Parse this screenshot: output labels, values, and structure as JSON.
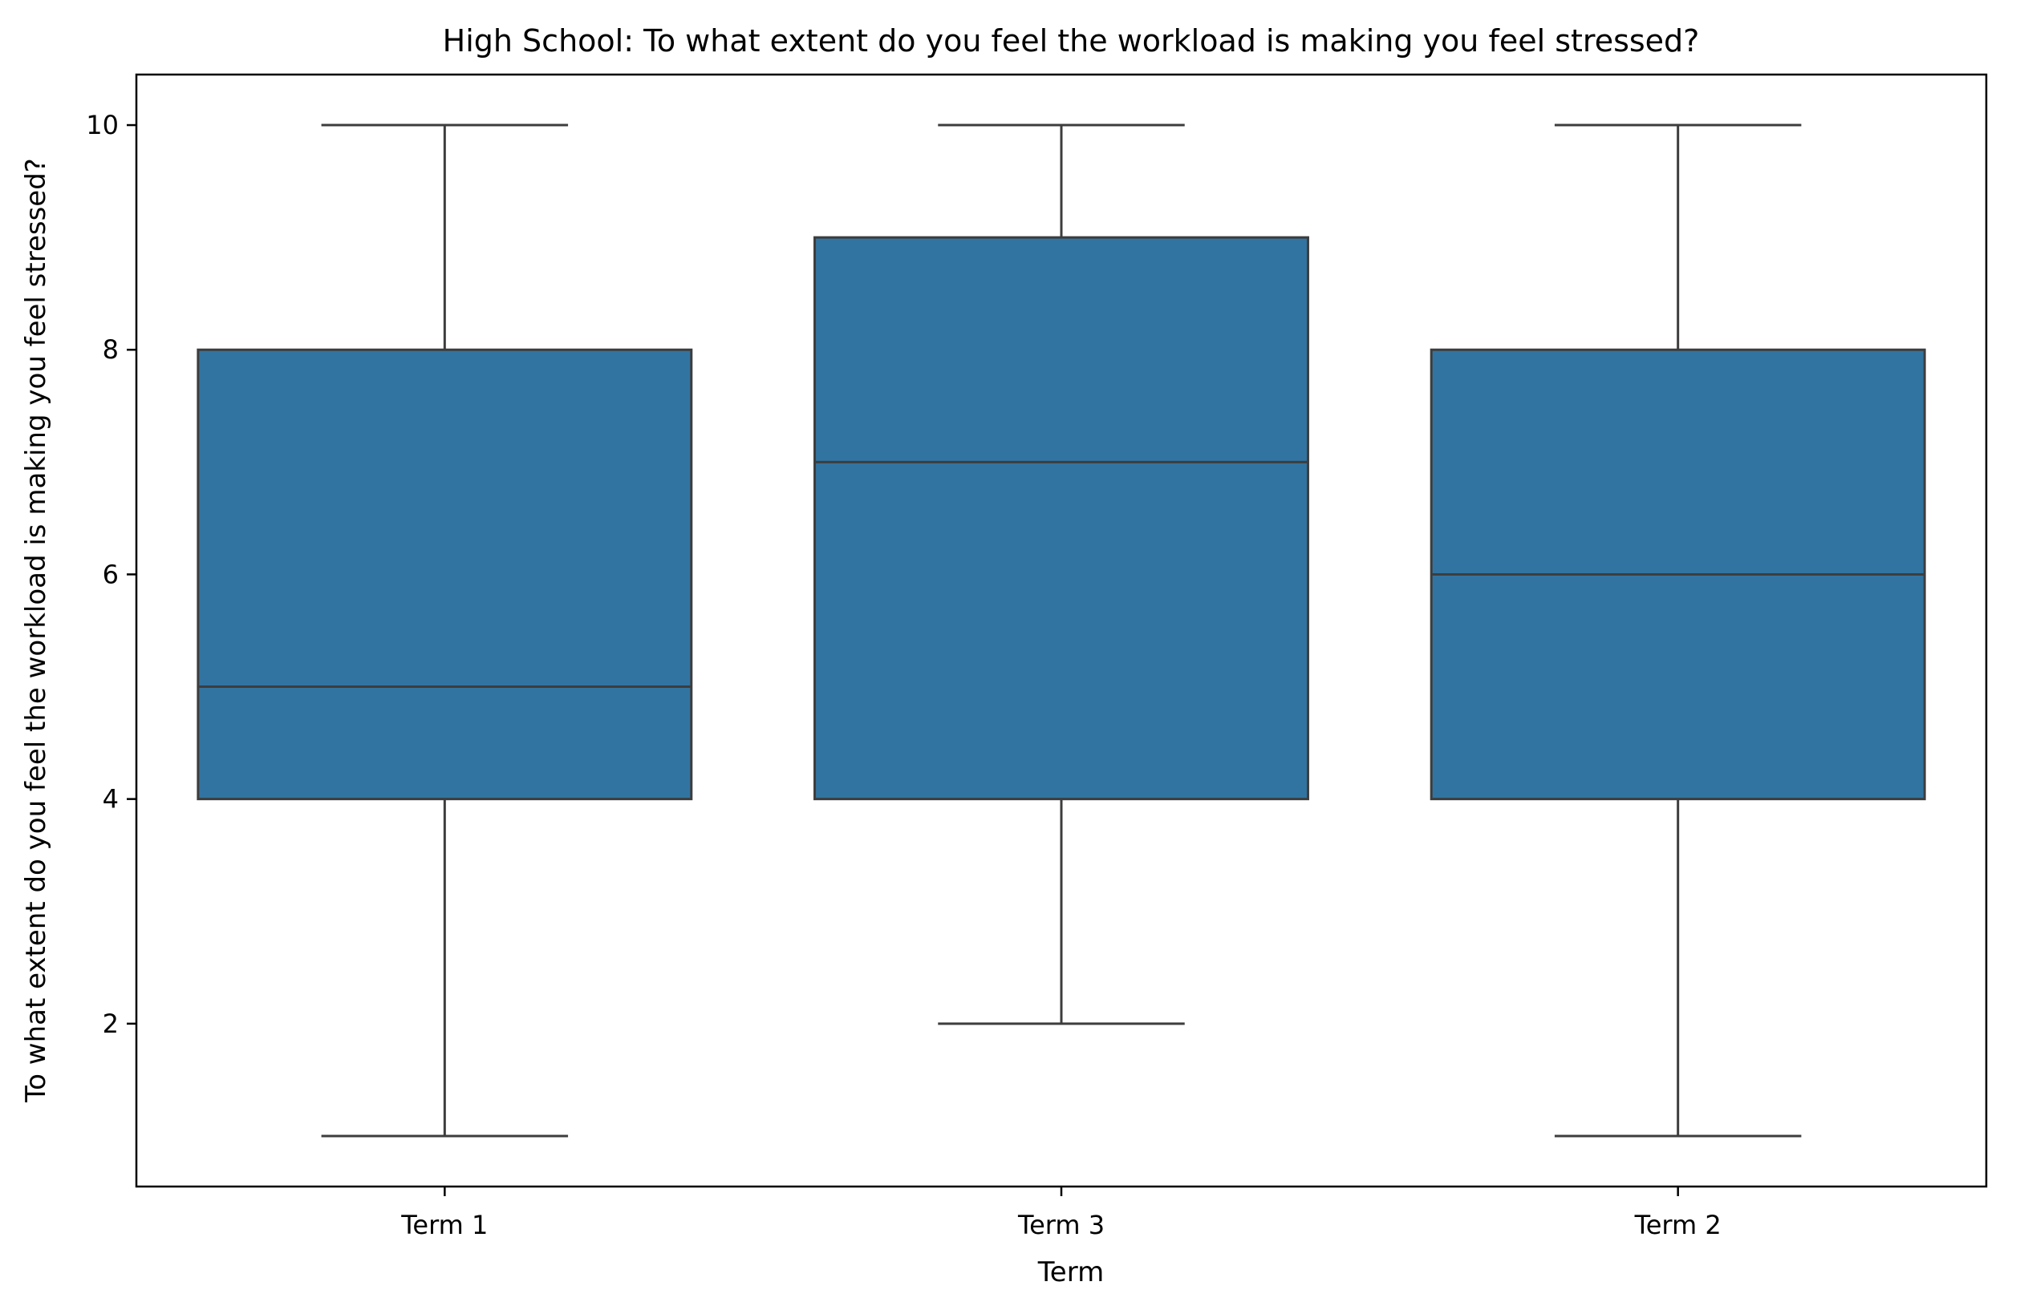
{
  "chart_data": {
    "type": "box",
    "title": "High School: To what extent do you feel the workload is making you feel stressed?",
    "xlabel": "Term",
    "ylabel": "To what extent do you feel the workload is making you feel stressed?",
    "categories": [
      "Term 1",
      "Term 3",
      "Term 2"
    ],
    "boxes": [
      {
        "category": "Term 1",
        "whisker_low": 1,
        "q1": 4,
        "median": 5,
        "q3": 8,
        "whisker_high": 10
      },
      {
        "category": "Term 3",
        "whisker_low": 2,
        "q1": 4,
        "median": 7,
        "q3": 9,
        "whisker_high": 10
      },
      {
        "category": "Term 2",
        "whisker_low": 1,
        "q1": 4,
        "median": 6,
        "q3": 8,
        "whisker_high": 10
      }
    ],
    "ylim": [
      0.55,
      10.45
    ],
    "yticks": [
      2,
      4,
      6,
      8,
      10
    ],
    "grid": false,
    "legend": "none",
    "box_color": "#3274a1",
    "line_color": "#3d3d3d"
  }
}
